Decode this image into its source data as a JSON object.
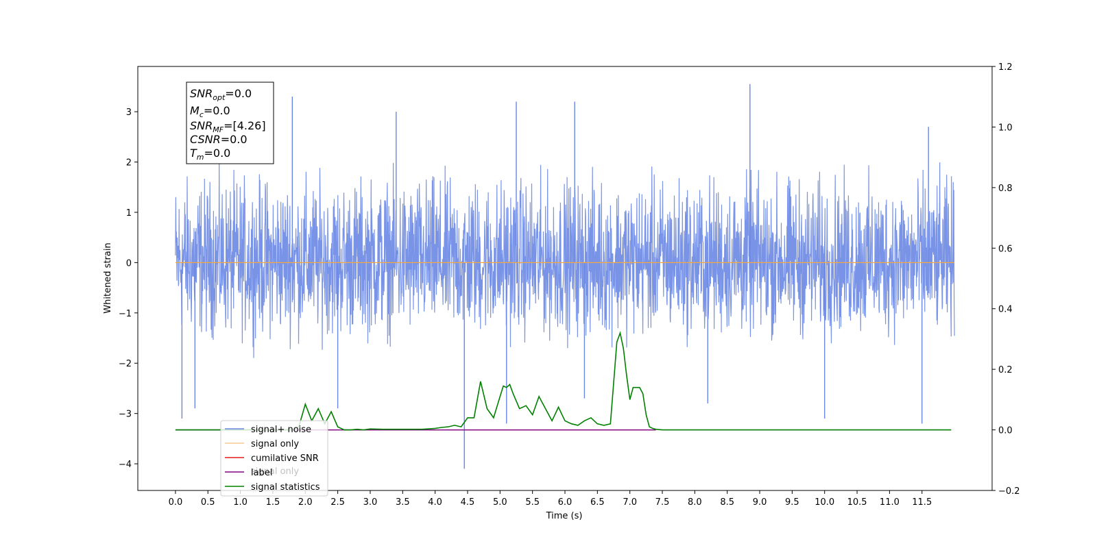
{
  "chart_data": {
    "type": "line",
    "xlabel": "Time (s)",
    "ylabel": "Whitened strain",
    "xlim": [
      -0.58,
      12.58
    ],
    "ylim": [
      -4.53,
      3.9
    ],
    "y2lim": [
      -0.2,
      1.2
    ],
    "x_ticks": [
      "0.0",
      "0.5",
      "1.0",
      "1.5",
      "2.0",
      "2.5",
      "3.0",
      "3.5",
      "4.0",
      "4.5",
      "5.0",
      "5.5",
      "6.0",
      "6.5",
      "7.0",
      "7.5",
      "8.0",
      "8.5",
      "9.0",
      "9.5",
      "10.0",
      "10.5",
      "11.0",
      "11.5"
    ],
    "y_ticks": [
      "−4",
      "−3",
      "−2",
      "−1",
      "0",
      "1",
      "2",
      "3"
    ],
    "y2_ticks": [
      "−0.2",
      "0.0",
      "0.2",
      "0.4",
      "0.6",
      "0.8",
      "1.0",
      "1.2"
    ],
    "stats_box": {
      "snr_opt": "=0.0",
      "mc": "=0.0",
      "snr_mf": "=[4.26]",
      "csnr": "=0.0",
      "tm": "=0.0"
    },
    "legend": {
      "placement": "lower-left",
      "entries": [
        "signal+ noise",
        "signal only",
        "cumilative SNR",
        "label",
        "signal statistics"
      ],
      "ghost_text": "signal only"
    },
    "series": [
      {
        "name": "signal+ noise",
        "axis": "left",
        "color": "#6a87e3",
        "kind": "noise",
        "x_range": [
          0,
          12
        ],
        "typical_range": [
          -2.0,
          2.3
        ],
        "spikes": [
          [
            0.1,
            -3.1
          ],
          [
            0.3,
            -2.9
          ],
          [
            1.8,
            3.3
          ],
          [
            2.5,
            -2.9
          ],
          [
            3.4,
            3.0
          ],
          [
            4.45,
            -4.1
          ],
          [
            5.1,
            -3.2
          ],
          [
            5.25,
            3.2
          ],
          [
            6.15,
            3.2
          ],
          [
            6.3,
            -2.7
          ],
          [
            8.2,
            -2.8
          ],
          [
            8.85,
            3.55
          ],
          [
            10.0,
            -3.1
          ],
          [
            11.5,
            -3.2
          ],
          [
            11.6,
            2.7
          ]
        ]
      },
      {
        "name": "signal only",
        "axis": "left",
        "color": "#f5a742",
        "x": [
          0,
          12
        ],
        "y": [
          0,
          0
        ]
      },
      {
        "name": "cumilative SNR",
        "axis": "right",
        "color": "#e41a1c",
        "x": [],
        "y": []
      },
      {
        "name": "label",
        "axis": "right",
        "color": "#800080",
        "x": [
          0,
          7.4
        ],
        "y": [
          0,
          0
        ]
      },
      {
        "name": "signal statistics",
        "axis": "right",
        "color": "#008000",
        "x": [
          0,
          1.8,
          1.9,
          2.0,
          2.1,
          2.2,
          2.3,
          2.4,
          2.5,
          2.6,
          2.7,
          2.8,
          2.9,
          3.0,
          3.2,
          3.5,
          3.8,
          4.0,
          4.1,
          4.2,
          4.3,
          4.4,
          4.5,
          4.6,
          4.7,
          4.8,
          4.9,
          5.0,
          5.05,
          5.1,
          5.15,
          5.2,
          5.3,
          5.4,
          5.5,
          5.6,
          5.7,
          5.8,
          5.9,
          6.0,
          6.1,
          6.2,
          6.3,
          6.4,
          6.5,
          6.6,
          6.7,
          6.8,
          6.85,
          6.9,
          6.95,
          7.0,
          7.05,
          7.1,
          7.15,
          7.2,
          7.25,
          7.3,
          7.35,
          7.4,
          7.5,
          8.0,
          9.0,
          10.0,
          11.0,
          11.95
        ],
        "y": [
          0,
          0,
          0.01,
          0.085,
          0.03,
          0.07,
          0.02,
          0.06,
          0.01,
          0.0,
          0.0,
          0.002,
          0.0,
          0.003,
          0.002,
          0.002,
          0.002,
          0.005,
          0.008,
          0.01,
          0.015,
          0.01,
          0.04,
          0.04,
          0.16,
          0.07,
          0.04,
          0.11,
          0.145,
          0.14,
          0.15,
          0.12,
          0.07,
          0.08,
          0.05,
          0.11,
          0.07,
          0.03,
          0.075,
          0.03,
          0.02,
          0.015,
          0.03,
          0.04,
          0.02,
          0.015,
          0.02,
          0.29,
          0.32,
          0.27,
          0.18,
          0.1,
          0.14,
          0.14,
          0.14,
          0.12,
          0.05,
          0.01,
          0.005,
          0.002,
          0.0,
          0.0,
          0.0,
          0.0,
          0.0,
          0.0
        ]
      }
    ]
  }
}
